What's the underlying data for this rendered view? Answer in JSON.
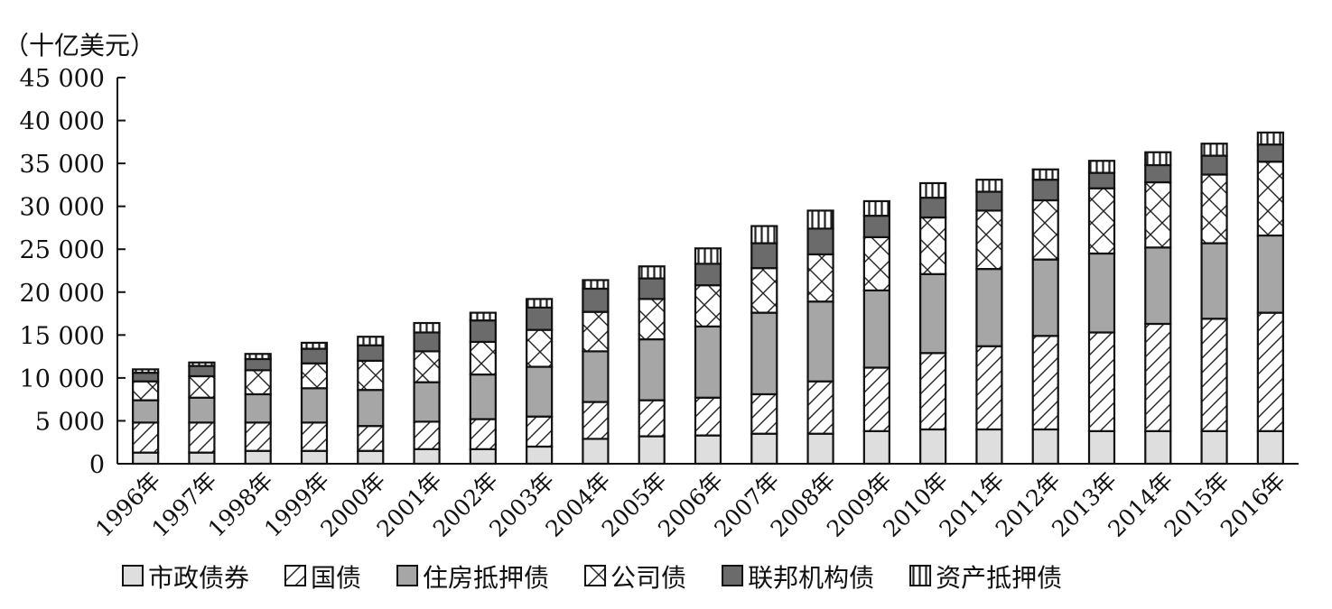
{
  "chart_data": {
    "type": "bar",
    "stacked": true,
    "title": "",
    "unit_label": "（十亿美元）",
    "xlabel": "",
    "ylabel": "",
    "ylim": [
      0,
      45000
    ],
    "y_ticks": [
      0,
      5000,
      10000,
      15000,
      20000,
      25000,
      30000,
      35000,
      40000,
      45000
    ],
    "y_tick_labels": [
      "0",
      "5 000",
      "10 000",
      "15 000",
      "20 000",
      "25 000",
      "30 000",
      "35 000",
      "40 000",
      "45 000"
    ],
    "grid": false,
    "legend_position": "bottom",
    "categories": [
      "1996年",
      "1997年",
      "1998年",
      "1999年",
      "2000年",
      "2001年",
      "2002年",
      "2003年",
      "2004年",
      "2005年",
      "2006年",
      "2007年",
      "2008年",
      "2009年",
      "2010年",
      "2011年",
      "2012年",
      "2013年",
      "2014年",
      "2015年",
      "2016年"
    ],
    "series": [
      {
        "name": "市政债券",
        "pattern": "light-gray",
        "values": [
          1300,
          1300,
          1500,
          1500,
          1500,
          1700,
          1700,
          2000,
          2900,
          3200,
          3300,
          3500,
          3500,
          3800,
          4000,
          4000,
          4000,
          3800,
          3800,
          3800,
          3800
        ]
      },
      {
        "name": "国债",
        "pattern": "diagonal",
        "values": [
          3500,
          3500,
          3300,
          3300,
          2900,
          3200,
          3500,
          3500,
          4300,
          4200,
          4400,
          4600,
          6100,
          7400,
          8900,
          9700,
          10900,
          11500,
          12500,
          13100,
          13800
        ]
      },
      {
        "name": "住房抵押债",
        "pattern": "mid-gray",
        "values": [
          2600,
          2900,
          3300,
          4000,
          4200,
          4600,
          5200,
          5800,
          5900,
          7100,
          8300,
          9500,
          9300,
          9000,
          9200,
          9000,
          8900,
          9200,
          8900,
          8800,
          9000
        ]
      },
      {
        "name": "公司债",
        "pattern": "cross-hatch",
        "values": [
          2200,
          2500,
          2800,
          2900,
          3400,
          3600,
          3800,
          4300,
          4600,
          4700,
          4800,
          5200,
          5500,
          6200,
          6600,
          6800,
          6900,
          7600,
          7600,
          8000,
          8600
        ]
      },
      {
        "name": "联邦机构债",
        "pattern": "dark-gray",
        "values": [
          1000,
          1200,
          1300,
          1700,
          1800,
          2200,
          2500,
          2600,
          2700,
          2400,
          2500,
          2900,
          3000,
          2500,
          2300,
          2200,
          2400,
          1800,
          2000,
          2200,
          2000
        ]
      },
      {
        "name": "资产抵押债",
        "pattern": "vertical",
        "values": [
          400,
          400,
          600,
          700,
          1000,
          1100,
          900,
          1000,
          1000,
          1400,
          1800,
          2000,
          2100,
          1700,
          1700,
          1400,
          1200,
          1400,
          1500,
          1400,
          1400
        ]
      }
    ]
  }
}
